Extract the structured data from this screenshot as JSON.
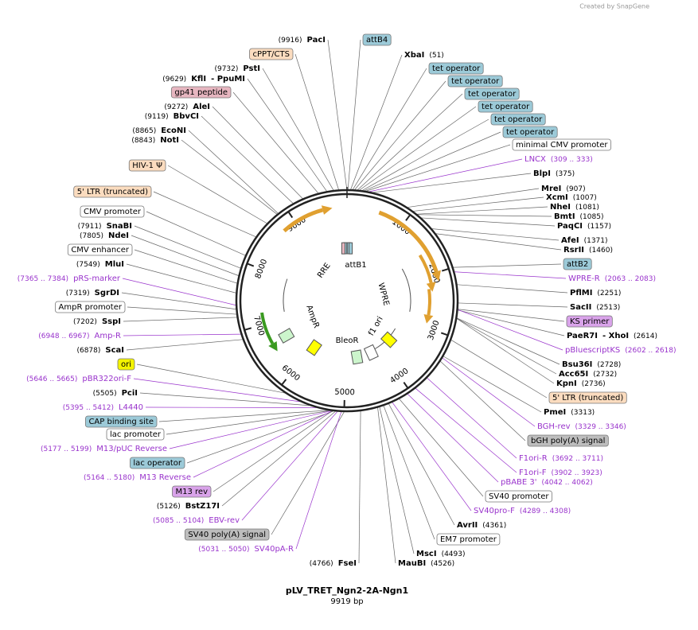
{
  "credit": "Created by SnapGene",
  "map": {
    "name": "pLV_TRET_Ngn2-2A-Ngn1",
    "length": "9919 bp",
    "ticks": [
      "1000",
      "2000",
      "3000",
      "4000",
      "5000",
      "6000",
      "7000",
      "8000",
      "9000"
    ]
  },
  "inner_features": [
    "RRE",
    "attB1",
    "WPRE",
    "f1 ori",
    "BleoR",
    "AmpR"
  ],
  "labels": [
    {
      "kind": "enzyme",
      "name": "PacI",
      "position": "(9916)"
    },
    {
      "kind": "feature",
      "name": "attB4",
      "color": "#9ccad8"
    },
    {
      "kind": "enzyme",
      "name": "XbaI",
      "position": "(51)"
    },
    {
      "kind": "feature",
      "name": "cPPT/CTS",
      "color": "#fbdcbf"
    },
    {
      "kind": "enzyme",
      "name": "PstI",
      "position": "(9732)"
    },
    {
      "kind": "feature",
      "name": "tet operator",
      "color": "#9ccad8"
    },
    {
      "kind": "feature",
      "name": "tet operator",
      "color": "#9ccad8"
    },
    {
      "kind": "feature",
      "name": "tet operator",
      "color": "#9ccad8"
    },
    {
      "kind": "feature",
      "name": "tet operator",
      "color": "#9ccad8"
    },
    {
      "kind": "feature",
      "name": "tet operator",
      "color": "#9ccad8"
    },
    {
      "kind": "feature",
      "name": "tet operator",
      "color": "#9ccad8"
    },
    {
      "kind": "enzyme",
      "name": "KflI",
      "alias": "- PpuMI",
      "position": "(9629)"
    },
    {
      "kind": "feature",
      "name": "gp41 peptide",
      "color": "#e7b6c0"
    },
    {
      "kind": "enzyme",
      "name": "AleI",
      "position": "(9272)"
    },
    {
      "kind": "enzyme",
      "name": "BbvCI",
      "position": "(9119)"
    },
    {
      "kind": "feature",
      "name": "minimal CMV promoter",
      "color": "#ffffff"
    },
    {
      "kind": "enzyme",
      "name": "EcoNI",
      "position": "(8865)"
    },
    {
      "kind": "enzyme",
      "name": "NotI",
      "position": "(8843)"
    },
    {
      "kind": "primer",
      "name": "LNCX",
      "range": "(309 .. 333)"
    },
    {
      "kind": "feature",
      "name": "HIV-1 Ψ",
      "color": "#fbdcbf"
    },
    {
      "kind": "enzyme",
      "name": "BlpI",
      "position": "(375)"
    },
    {
      "kind": "feature",
      "name": "5' LTR (truncated)",
      "color": "#fbdcbf"
    },
    {
      "kind": "enzyme",
      "name": "MreI",
      "position": "(907)"
    },
    {
      "kind": "enzyme",
      "name": "XcmI",
      "position": "(1007)"
    },
    {
      "kind": "enzyme",
      "name": "NheI",
      "position": "(1081)"
    },
    {
      "kind": "enzyme",
      "name": "BmtI",
      "position": "(1085)"
    },
    {
      "kind": "enzyme",
      "name": "PaqCI",
      "position": "(1157)"
    },
    {
      "kind": "feature",
      "name": "CMV promoter",
      "color": "#ffffff"
    },
    {
      "kind": "enzyme",
      "name": "SnaBI",
      "position": "(7911)"
    },
    {
      "kind": "enzyme",
      "name": "NdeI",
      "position": "(7805)"
    },
    {
      "kind": "enzyme",
      "name": "AfeI",
      "position": "(1371)"
    },
    {
      "kind": "enzyme",
      "name": "RsrII",
      "position": "(1460)"
    },
    {
      "kind": "feature",
      "name": "CMV enhancer",
      "color": "#ffffff"
    },
    {
      "kind": "enzyme",
      "name": "MluI",
      "position": "(7549)"
    },
    {
      "kind": "feature",
      "name": "attB2",
      "color": "#9ccad8"
    },
    {
      "kind": "primer",
      "name": "pRS-marker",
      "range": "(7365 .. 7384)"
    },
    {
      "kind": "primer",
      "name": "WPRE-R",
      "range": "(2063 .. 2083)"
    },
    {
      "kind": "enzyme",
      "name": "SgrDI",
      "position": "(7319)"
    },
    {
      "kind": "enzyme",
      "name": "PflMI",
      "position": "(2251)"
    },
    {
      "kind": "feature",
      "name": "AmpR promoter",
      "color": "#ffffff"
    },
    {
      "kind": "enzyme",
      "name": "SacII",
      "position": "(2513)"
    },
    {
      "kind": "enzyme",
      "name": "SspI",
      "position": "(7202)"
    },
    {
      "kind": "feature",
      "name": "KS primer",
      "color": "#d9a3ea"
    },
    {
      "kind": "primer",
      "name": "Amp-R",
      "range": "(6948 .. 6967)"
    },
    {
      "kind": "enzyme",
      "name": "PaeR7I",
      "alias": "- XhoI",
      "position": "(2614)"
    },
    {
      "kind": "enzyme",
      "name": "ScaI",
      "position": "(6878)"
    },
    {
      "kind": "primer",
      "name": "pBluescriptKS",
      "range": "(2602 .. 2618)"
    },
    {
      "kind": "feature",
      "name": "ori",
      "color": "#f4f400"
    },
    {
      "kind": "enzyme",
      "name": "Bsu36I",
      "position": "(2728)"
    },
    {
      "kind": "enzyme",
      "name": "Acc65I",
      "position": "(2732)"
    },
    {
      "kind": "enzyme",
      "name": "KpnI",
      "position": "(2736)"
    },
    {
      "kind": "primer",
      "name": "pBR322ori-F",
      "range": "(5646 .. 5665)"
    },
    {
      "kind": "enzyme",
      "name": "PciI",
      "position": "(5505)"
    },
    {
      "kind": "feature",
      "name": "5' LTR (truncated)",
      "color": "#fbdcbf"
    },
    {
      "kind": "primer",
      "name": "L4440",
      "range": "(5395 .. 5412)"
    },
    {
      "kind": "enzyme",
      "name": "PmeI",
      "position": "(3313)"
    },
    {
      "kind": "feature",
      "name": "CAP binding site",
      "color": "#9ccad8"
    },
    {
      "kind": "primer",
      "name": "BGH-rev",
      "range": "(3329 .. 3346)"
    },
    {
      "kind": "feature",
      "name": "lac promoter",
      "color": "#ffffff"
    },
    {
      "kind": "feature",
      "name": "bGH poly(A) signal",
      "color": "#bdbdbd"
    },
    {
      "kind": "primer",
      "name": "M13/pUC Reverse",
      "range": "(5177 .. 5199)"
    },
    {
      "kind": "primer",
      "name": "F1ori-R",
      "range": "(3692 .. 3711)"
    },
    {
      "kind": "feature",
      "name": "lac operator",
      "color": "#9ccad8"
    },
    {
      "kind": "primer",
      "name": "F1ori-F",
      "range": "(3902 .. 3923)"
    },
    {
      "kind": "primer",
      "name": "M13 Reverse",
      "range": "(5164 .. 5180)"
    },
    {
      "kind": "primer",
      "name": "pBABE 3'",
      "range": "(4042 .. 4062)"
    },
    {
      "kind": "feature",
      "name": "M13 rev",
      "color": "#d9a3ea"
    },
    {
      "kind": "feature",
      "name": "SV40 promoter",
      "color": "#ffffff"
    },
    {
      "kind": "enzyme",
      "name": "BstZ17I",
      "position": "(5126)"
    },
    {
      "kind": "primer",
      "name": "SV40pro-F",
      "range": "(4289 .. 4308)"
    },
    {
      "kind": "primer",
      "name": "EBV-rev",
      "range": "(5085 .. 5104)"
    },
    {
      "kind": "enzyme",
      "name": "AvrII",
      "position": "(4361)"
    },
    {
      "kind": "feature",
      "name": "SV40 poly(A) signal",
      "color": "#bdbdbd"
    },
    {
      "kind": "feature",
      "name": "EM7 promoter",
      "color": "#ffffff"
    },
    {
      "kind": "primer",
      "name": "SV40pA-R",
      "range": "(5031 .. 5050)"
    },
    {
      "kind": "enzyme",
      "name": "MscI",
      "position": "(4493)"
    },
    {
      "kind": "enzyme",
      "name": "FseI",
      "position": "(4766)"
    },
    {
      "kind": "enzyme",
      "name": "MauBI",
      "position": "(4526)"
    }
  ]
}
